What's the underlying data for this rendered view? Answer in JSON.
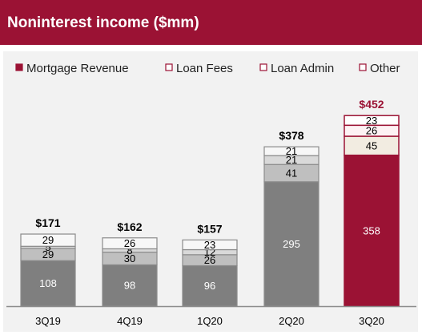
{
  "header": {
    "title": "Noninterest income ($mm)"
  },
  "chart_data": {
    "type": "bar",
    "stacked": true,
    "categories": [
      "3Q19",
      "4Q19",
      "1Q20",
      "2Q20",
      "3Q20"
    ],
    "series": [
      {
        "name": "Mortgage Revenue",
        "values": [
          108,
          98,
          96,
          295,
          358
        ]
      },
      {
        "name": "Loan Fees",
        "values": [
          29,
          30,
          26,
          41,
          45
        ]
      },
      {
        "name": "Loan Admin",
        "values": [
          5,
          8,
          12,
          21,
          26
        ]
      },
      {
        "name": "Other",
        "values": [
          29,
          26,
          23,
          21,
          23
        ]
      }
    ],
    "totals": [
      "$171",
      "$162",
      "$157",
      "$378",
      "$452"
    ],
    "highlight_category": "3Q20",
    "legend_position": "top",
    "colors": {
      "mortgage": "#7f7f7f",
      "loan_fees": "#bfbfbf",
      "loan_admin": "#d9d9d9",
      "other": "#f7f7f7",
      "highlight_mortgage": "#9b1234",
      "highlight_loan_fees": "#f2ece1",
      "highlight_loan_admin": "#fdf2f4",
      "highlight_other": "#ffffff",
      "accent": "#9b1234",
      "axis": "#8c8c8c"
    },
    "ylim": [
      0,
      460
    ]
  }
}
